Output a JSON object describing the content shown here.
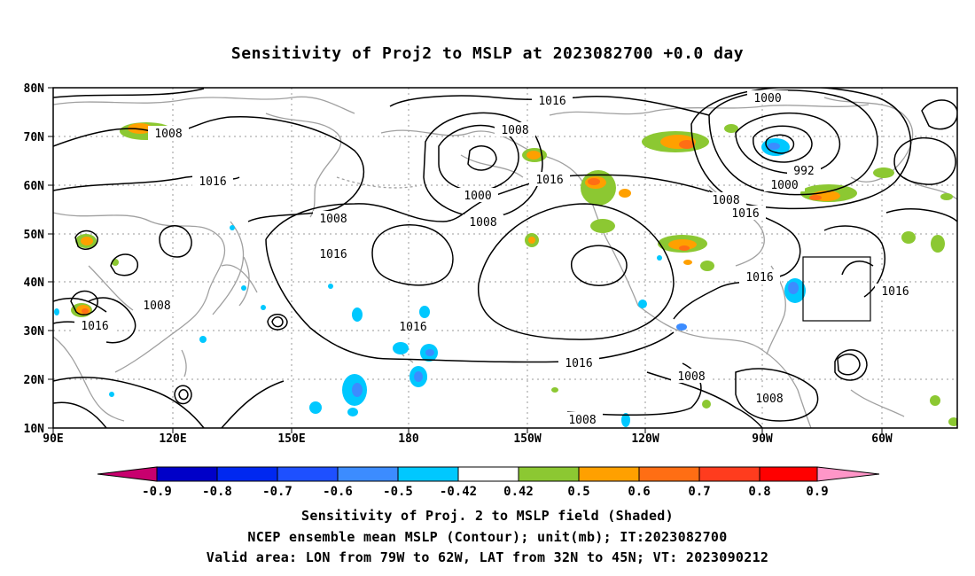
{
  "title": "Sensitivity of Proj2 to MSLP at 2023082700 +0.0 day",
  "axes": {
    "lat_labels": [
      "80N",
      "70N",
      "60N",
      "50N",
      "40N",
      "30N",
      "20N",
      "10N"
    ],
    "lon_labels": [
      "90E",
      "120E",
      "150E",
      "180",
      "150W",
      "120W",
      "90W",
      "60W"
    ]
  },
  "contour_labels": [
    "1016",
    "1008",
    "1016",
    "1000",
    "1008",
    "1016",
    "1008",
    "1016",
    "1000",
    "992",
    "1000",
    "1008",
    "1016",
    "1016",
    "1008",
    "1016",
    "1016",
    "1016",
    "1008",
    "1008",
    "1016",
    "1008"
  ],
  "colorbar": {
    "labels": [
      "-0.9",
      "-0.8",
      "-0.7",
      "-0.6",
      "-0.5",
      "-0.42",
      "0.42",
      "0.5",
      "0.6",
      "0.7",
      "0.8",
      "0.9"
    ],
    "colors": [
      "#c8006e",
      "#0000c8",
      "#0028f0",
      "#1e50ff",
      "#3c8cff",
      "#00c8ff",
      "#ffffff",
      "#8cc832",
      "#ffa000",
      "#ff6e14",
      "#ff3c1e",
      "#ff0000",
      "#ff96c8"
    ]
  },
  "footer": {
    "line1": "Sensitivity of Proj. 2 to MSLP field (Shaded)",
    "line2": "NCEP ensemble mean MSLP (Contour); unit(mb); IT:2023082700",
    "line3": "Valid area: LON from 79W to 62W, LAT from 32N to 45N; VT: 2023090212"
  },
  "colors": {
    "coast": "#a0a0a0",
    "contour": "#000000",
    "green": "#8cc832",
    "orange": "#ffa000",
    "red": "#ff6e14",
    "cyan": "#00c8ff",
    "blue": "#3c8cff"
  }
}
